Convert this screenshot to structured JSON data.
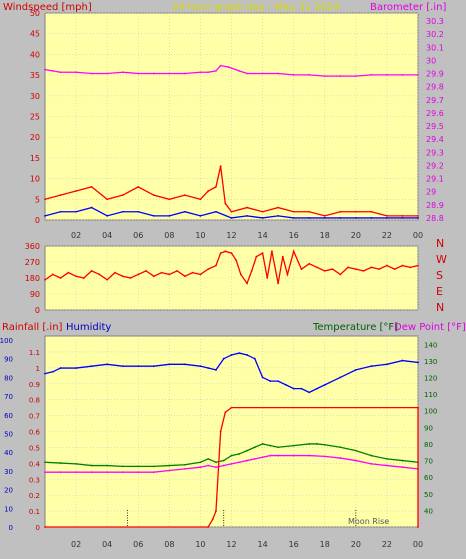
{
  "chart_data": [
    {
      "type": "line",
      "title": "24 hour graph day : May 31 2024",
      "left_axis_label": "Windspeed [mph]",
      "right_axis_label": "Barometer [.in]",
      "ylim_left": [
        0,
        50
      ],
      "ylim_right": [
        28.8,
        30.3
      ],
      "yticks_left": [
        "0",
        "5",
        "10",
        "15",
        "20",
        "25",
        "30",
        "35",
        "40",
        "45",
        "50"
      ],
      "yticks_right": [
        "28.8",
        "28.9",
        "29",
        "29.1",
        "29.2",
        "29.3",
        "29.4",
        "29.5",
        "29.6",
        "29.7",
        "29.8",
        "29.9",
        "30",
        "30.1",
        "30.2",
        "30.3"
      ],
      "x_ticks": [
        "02",
        "04",
        "06",
        "08",
        "10",
        "12",
        "14",
        "16",
        "18",
        "20",
        "22",
        "00"
      ],
      "colors": {
        "wind_gust": "#ff0000",
        "wind_avg": "#0000ff",
        "wind_low": "#008000",
        "barometer": "#ff00ff"
      },
      "series": [
        {
          "key": "barometer",
          "axis": "right",
          "x": [
            0,
            0.5,
            1,
            2,
            3,
            4,
            5,
            6,
            7,
            8,
            9,
            10,
            10.5,
            11,
            11.3,
            11.8,
            12.5,
            13,
            14,
            15,
            16,
            17,
            18,
            19,
            20,
            21,
            22,
            23,
            24
          ],
          "values": [
            29.93,
            29.92,
            29.91,
            29.91,
            29.9,
            29.9,
            29.91,
            29.9,
            29.9,
            29.9,
            29.9,
            29.91,
            29.91,
            29.92,
            29.96,
            29.95,
            29.92,
            29.9,
            29.9,
            29.9,
            29.89,
            29.89,
            29.88,
            29.88,
            29.88,
            29.89,
            29.89,
            29.89,
            29.89
          ]
        },
        {
          "key": "wind_gust",
          "axis": "left",
          "x": [
            0,
            1,
            2,
            3,
            4,
            5,
            6,
            7,
            8,
            9,
            10,
            10.5,
            11,
            11.3,
            11.6,
            12,
            13,
            14,
            15,
            16,
            17,
            18,
            19,
            20,
            21,
            22,
            23,
            24
          ],
          "values": [
            5,
            6,
            7,
            8,
            5,
            6,
            8,
            6,
            5,
            6,
            5,
            7,
            8,
            13,
            4,
            2,
            3,
            2,
            3,
            2,
            2,
            1,
            2,
            2,
            2,
            1,
            1,
            1
          ]
        },
        {
          "key": "wind_avg",
          "axis": "left",
          "x": [
            0,
            1,
            2,
            3,
            4,
            5,
            6,
            7,
            8,
            9,
            10,
            11,
            12,
            13,
            14,
            15,
            16,
            17,
            18,
            19,
            20,
            21,
            22,
            23,
            24
          ],
          "values": [
            1,
            2,
            2,
            3,
            1,
            2,
            2,
            1,
            1,
            2,
            1,
            2,
            0.5,
            1,
            0.5,
            1,
            0.5,
            0.5,
            0.5,
            0.5,
            0.5,
            0.5,
            0.5,
            0.5,
            0.5
          ]
        }
      ]
    },
    {
      "type": "line",
      "title": "",
      "right_axis_label": "",
      "ylim": [
        0,
        360
      ],
      "yticks": [
        "0",
        "90",
        "180",
        "270",
        "360"
      ],
      "compass_labels": [
        "N",
        "W",
        "S",
        "E",
        "N"
      ],
      "x_ticks": [
        "02",
        "04",
        "06",
        "08",
        "10",
        "12",
        "14",
        "16",
        "18",
        "20",
        "22",
        "00"
      ],
      "colors": {
        "direction": "#ff0000"
      },
      "series": [
        {
          "key": "wind_direction",
          "x": [
            0,
            0.5,
            1,
            1.5,
            2,
            2.5,
            3,
            3.5,
            4,
            4.5,
            5,
            5.5,
            6,
            6.5,
            7,
            7.5,
            8,
            8.5,
            9,
            9.5,
            10,
            10.5,
            11,
            11.3,
            11.6,
            12,
            12.3,
            12.6,
            13,
            13.3,
            13.6,
            14,
            14.3,
            14.6,
            15,
            15.3,
            15.6,
            16,
            16.5,
            17,
            17.5,
            18,
            18.5,
            19,
            19.5,
            20,
            20.5,
            21,
            21.5,
            22,
            22.5,
            23,
            23.5,
            24
          ],
          "values": [
            170,
            200,
            180,
            210,
            190,
            180,
            220,
            200,
            170,
            210,
            190,
            180,
            200,
            220,
            190,
            210,
            200,
            220,
            190,
            210,
            200,
            230,
            250,
            320,
            330,
            320,
            280,
            200,
            150,
            220,
            300,
            320,
            180,
            330,
            150,
            300,
            200,
            330,
            230,
            260,
            240,
            220,
            230,
            200,
            240,
            230,
            220,
            240,
            230,
            250,
            230,
            250,
            240,
            250
          ]
        }
      ]
    },
    {
      "type": "line",
      "title": "",
      "left_axis_label": "Rainfall [.in]",
      "left_axis_label_2": "Humidity",
      "right_axis_label": "Temperature [°F]",
      "right_axis_label_2": "Dew Point [°F]",
      "annotation": "Moon Rise",
      "ylim_humidity": [
        0,
        100
      ],
      "ylim_rain": [
        0,
        1.2
      ],
      "ylim_temp": [
        30,
        145
      ],
      "yticks_humidity": [
        "0",
        "10",
        "20",
        "30",
        "40",
        "50",
        "60",
        "70",
        "80",
        "90",
        "100"
      ],
      "yticks_rain": [
        "0",
        "0.1",
        "0.2",
        "0.3",
        "0.4",
        "0.5",
        "0.6",
        "0.7",
        "0.8",
        "0.9",
        "1",
        "1.1"
      ],
      "yticks_temp": [
        "40",
        "50",
        "60",
        "70",
        "80",
        "90",
        "100",
        "110",
        "120",
        "130",
        "140"
      ],
      "x_ticks": [
        "02",
        "04",
        "06",
        "08",
        "10",
        "12",
        "14",
        "16",
        "18",
        "20",
        "22",
        "00"
      ],
      "colors": {
        "humidity": "#0000ff",
        "rain": "#ff0000",
        "temperature": "#008000",
        "dewpoint": "#ff00ff"
      },
      "series": [
        {
          "key": "humidity",
          "axis": "humidity",
          "x": [
            0,
            0.5,
            1,
            2,
            3,
            4,
            5,
            6,
            7,
            8,
            9,
            10,
            10.5,
            11,
            11.5,
            12,
            12.5,
            13,
            13.5,
            14,
            14.5,
            15,
            15.5,
            16,
            16.5,
            17,
            17.5,
            18,
            19,
            20,
            21,
            22,
            23,
            24
          ],
          "values": [
            82,
            83,
            85,
            85,
            86,
            87,
            86,
            86,
            86,
            87,
            87,
            86,
            85,
            84,
            90,
            92,
            93,
            92,
            90,
            80,
            78,
            78,
            76,
            74,
            74,
            72,
            74,
            76,
            80,
            84,
            86,
            87,
            89,
            88
          ]
        },
        {
          "key": "rain",
          "axis": "rain",
          "x": [
            0,
            10.5,
            10.8,
            11,
            11.3,
            11.6,
            12,
            24,
            24,
            24
          ],
          "values": [
            0,
            0,
            0.05,
            0.1,
            0.6,
            0.72,
            0.75,
            0.75,
            0.75,
            0
          ]
        },
        {
          "key": "temperature",
          "axis": "temp",
          "x": [
            0,
            1,
            2,
            3,
            4,
            5,
            6,
            7,
            8,
            9,
            10,
            10.5,
            11,
            11.5,
            12,
            12.5,
            13,
            13.5,
            14,
            14.5,
            15,
            16,
            17,
            17.5,
            18,
            19,
            20,
            21,
            22,
            23,
            24
          ],
          "values": [
            69,
            68.5,
            68,
            67,
            67,
            66.5,
            66.5,
            66.5,
            67,
            67.5,
            69,
            71,
            69,
            70,
            73,
            74,
            76,
            78,
            80,
            79,
            78,
            79,
            80,
            80,
            79.5,
            78,
            76,
            73,
            71,
            70,
            69
          ]
        },
        {
          "key": "dewpoint",
          "axis": "temp",
          "x": [
            0,
            1,
            2,
            3,
            4,
            5,
            6,
            7,
            8,
            9,
            10,
            10.5,
            11,
            11.5,
            12,
            12.5,
            13,
            13.5,
            14,
            14.5,
            15,
            16,
            17,
            18,
            19,
            20,
            21,
            22,
            23,
            24
          ],
          "values": [
            63,
            63,
            63,
            63,
            63,
            63,
            63,
            63,
            64,
            65,
            66,
            67,
            66,
            67,
            68,
            69,
            70,
            71,
            72,
            73,
            73,
            73,
            73,
            72.5,
            71.5,
            70,
            68,
            67,
            66,
            65
          ]
        }
      ]
    }
  ]
}
